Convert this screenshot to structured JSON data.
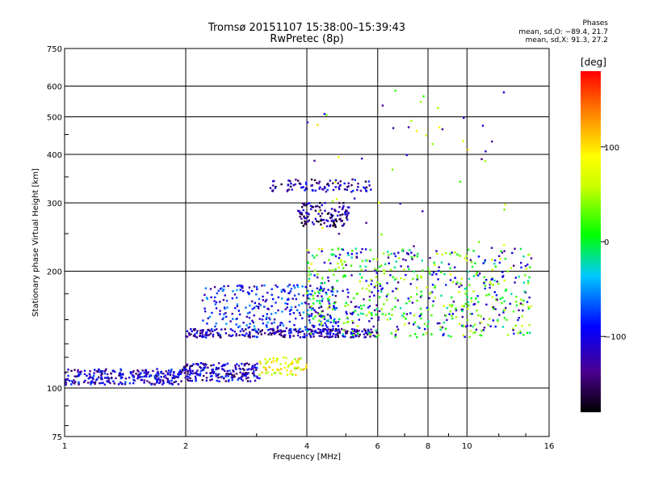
{
  "header": {
    "title_line1": "Tromsø 20151107 15:38:00–15:39:43",
    "title_line2": "RwPretec (8p)"
  },
  "phases": {
    "heading": "Phases",
    "line_o": "mean, sd,O: −89.4, 21.7",
    "line_x": "mean, sd,X:  91.3, 27.2"
  },
  "colorbar": {
    "unit": "[deg]",
    "ticks": [
      "100",
      "0",
      "−100"
    ],
    "tick_values": [
      100,
      0,
      -100
    ],
    "range": [
      -180,
      180
    ],
    "colormap": "rainbow"
  },
  "chart_data": {
    "type": "scatter",
    "title": "Tromsø 20151107 15:38:00–15:39:43",
    "subtitle": "RwPretec (8p)",
    "xlabel": "Frequency [MHz]",
    "ylabel": "Stationary phase Virtual Height [km]",
    "xscale": "log",
    "yscale": "log",
    "xlim": [
      1,
      16
    ],
    "ylim": [
      75,
      750
    ],
    "xticks": [
      1,
      2,
      4,
      6,
      8,
      10,
      16
    ],
    "xtick_labels": [
      "1",
      "2",
      "4",
      "6",
      "8",
      "10",
      "16"
    ],
    "yticks": [
      75,
      100,
      200,
      300,
      400,
      500,
      600,
      750
    ],
    "ytick_labels": [
      "75",
      "100",
      "200",
      "300",
      "400",
      "500",
      "600",
      "750"
    ],
    "grid": true,
    "clusters": [
      {
        "name": "lower trace",
        "x": [
          1.0,
          1.95
        ],
        "y": [
          102,
          112
        ],
        "phase": -110,
        "count": 260
      },
      {
        "name": "lower trace continued",
        "x": [
          1.95,
          3.05
        ],
        "y": [
          104,
          116
        ],
        "phase": -115,
        "count": 200
      },
      {
        "name": "yellow band",
        "x": [
          3.05,
          4.0
        ],
        "y": [
          108,
          120
        ],
        "phase": 80,
        "count": 70
      },
      {
        "name": "mid layer",
        "x": [
          2.0,
          6.0
        ],
        "y": [
          135,
          142
        ],
        "phase": -120,
        "count": 260
      },
      {
        "name": "mid layer scatter",
        "x": [
          2.2,
          4.8
        ],
        "y": [
          140,
          185
        ],
        "phase": -90,
        "count": 280
      },
      {
        "name": "high F trace",
        "x": [
          3.8,
          5.1
        ],
        "y": [
          260,
          300
        ],
        "phase": -140,
        "count": 120
      },
      {
        "name": "upper cluster",
        "x": [
          3.2,
          5.8
        ],
        "y": [
          320,
          345
        ],
        "phase": -120,
        "count": 90
      },
      {
        "name": "spread F",
        "x": [
          4.0,
          14.5
        ],
        "y": [
          135,
          230
        ],
        "phase": 20,
        "count": 650
      },
      {
        "name": "sparse high echoes",
        "x": [
          4.0,
          13.0
        ],
        "y": [
          180,
          600
        ],
        "phase": 60,
        "count": 70
      }
    ]
  }
}
